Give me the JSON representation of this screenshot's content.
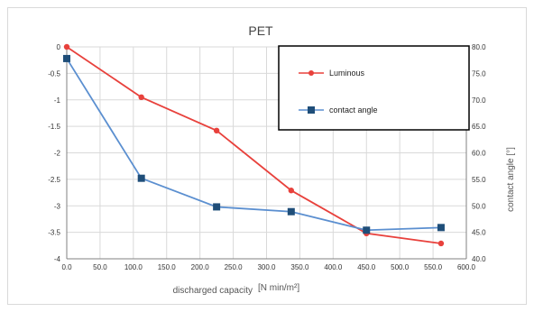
{
  "chart_data": {
    "type": "line",
    "title": "PET",
    "xlabel": "discharged capacity",
    "xlabel_unit": "[N min/m²]",
    "ylabel": "",
    "y2label": "contact angle [°]",
    "xlim": [
      0,
      600
    ],
    "ylim": [
      -4,
      0
    ],
    "y2lim": [
      40,
      80
    ],
    "grid": true,
    "legend_position": "top-right",
    "x_ticks": [
      "0.0",
      "50.0",
      "100.0",
      "150.0",
      "200.0",
      "250.0",
      "300.0",
      "350.0",
      "400.0",
      "450.0",
      "500.0",
      "550.0",
      "600.0"
    ],
    "y_ticks": [
      "0",
      "-0.5",
      "-1",
      "-1.5",
      "-2",
      "-2.5",
      "-3",
      "-3.5",
      "-4"
    ],
    "y2_ticks": [
      "80.0",
      "75.0",
      "70.0",
      "65.0",
      "60.0",
      "55.0",
      "50.0",
      "45.0",
      "40.0"
    ],
    "series": [
      {
        "name": "Luminous",
        "axis": "left",
        "color": "#e8413c",
        "marker": "circle",
        "x": [
          0,
          112,
          225,
          337,
          450,
          562
        ],
        "y": [
          0,
          -0.95,
          -1.58,
          -2.71,
          -3.52,
          -3.71
        ]
      },
      {
        "name": "contact angle",
        "axis": "right",
        "color": "#5b8fd0",
        "marker_color": "#1f4e79",
        "marker": "square",
        "x": [
          0,
          112,
          225,
          337,
          450,
          562
        ],
        "y": [
          77.8,
          55.2,
          49.8,
          48.9,
          45.4,
          45.9
        ]
      }
    ]
  }
}
